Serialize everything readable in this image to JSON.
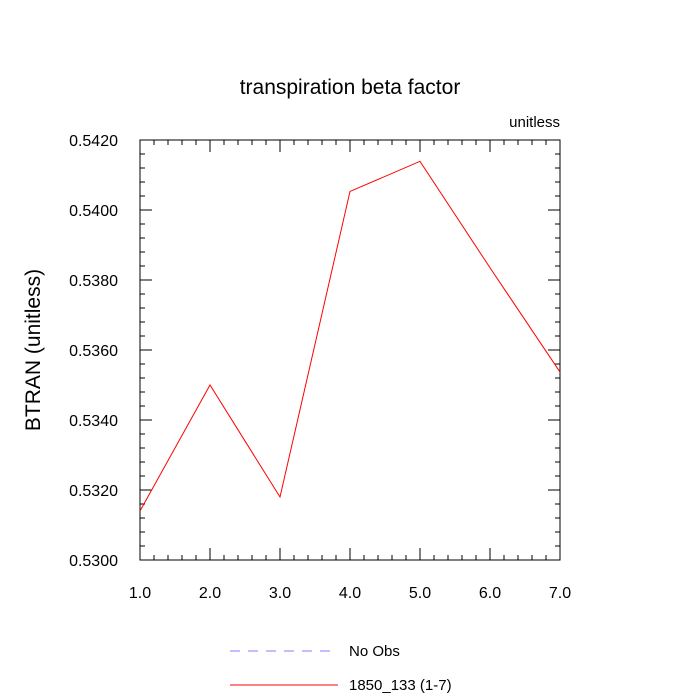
{
  "chart_data": {
    "type": "line",
    "title": "transpiration beta factor",
    "units_label": "unitless",
    "xlabel": "",
    "ylabel": "BTRAN  (unitless)",
    "xlim": [
      1.0,
      7.0
    ],
    "ylim": [
      0.53,
      0.542
    ],
    "x_ticks": [
      "1.0",
      "2.0",
      "3.0",
      "4.0",
      "5.0",
      "6.0",
      "7.0"
    ],
    "y_ticks": [
      "0.5300",
      "0.5320",
      "0.5340",
      "0.5360",
      "0.5380",
      "0.5400",
      "0.5420"
    ],
    "x": [
      1,
      2,
      3,
      4,
      5,
      6,
      7
    ],
    "series": [
      {
        "name": "1850_133 (1-7)",
        "color": "#ff0000",
        "dash": "solid",
        "values": [
          0.5314,
          0.535,
          0.5318,
          0.54053,
          0.54139,
          0.53835,
          0.53537
        ]
      }
    ],
    "legend": [
      {
        "label": "No Obs",
        "color": "#8080ff",
        "dash": "dashed"
      },
      {
        "label": "1850_133 (1-7)",
        "color": "#ff0000",
        "dash": "solid"
      }
    ],
    "legend_position": "bottom-center",
    "grid": false
  }
}
